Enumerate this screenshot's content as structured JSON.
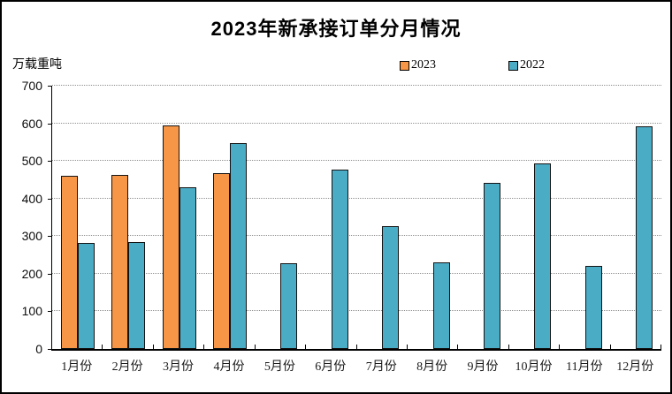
{
  "window": {
    "background": "#ffffff",
    "frame_border_color": "#000000"
  },
  "chart_data": {
    "type": "bar",
    "title": "2023年新承接订单分月情况",
    "unit_label": "万载重吨",
    "xlabel": "",
    "ylabel": "万载重吨",
    "categories": [
      "1月份",
      "2月份",
      "3月份",
      "4月份",
      "5月份",
      "6月份",
      "7月份",
      "8月份",
      "9月份",
      "10月份",
      "11月份",
      "12月份"
    ],
    "series": [
      {
        "name": "2023",
        "color": "#F79646",
        "values": [
          460,
          463,
          595,
          467,
          null,
          null,
          null,
          null,
          null,
          null,
          null,
          null
        ]
      },
      {
        "name": "2022",
        "color": "#4BACC6",
        "values": [
          281,
          284,
          430,
          548,
          229,
          478,
          327,
          231,
          441,
          494,
          220,
          592
        ]
      }
    ],
    "ylim": [
      0,
      700
    ],
    "ytick_step": 100,
    "yticks": [
      0,
      100,
      200,
      300,
      400,
      500,
      600,
      700
    ],
    "grid": "horizontal-dotted",
    "gridline_color": "#8f8f8f",
    "axis_color": "#000000",
    "bar_border_color": "#141414",
    "legend_position": "top",
    "legend_entries": [
      "2023",
      "2022"
    ]
  }
}
